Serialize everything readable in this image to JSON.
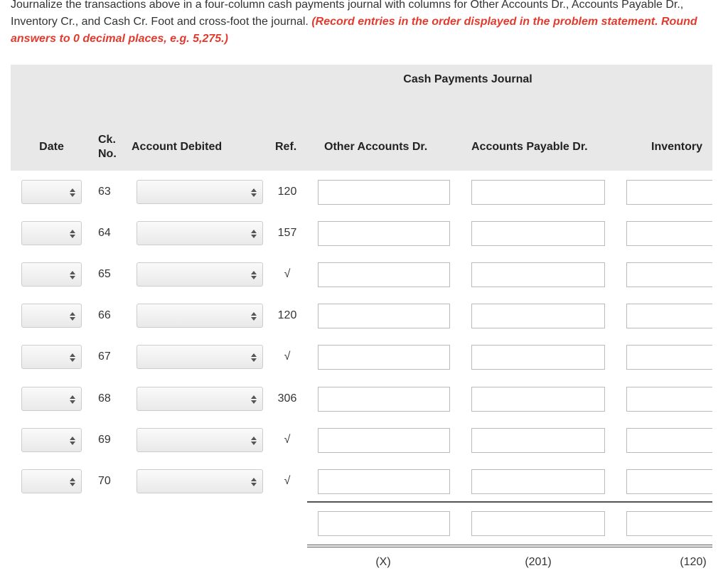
{
  "instructions": {
    "text": "Journalize the transactions above in a four-column cash payments journal with columns for Other Accounts Dr., Accounts Payable Dr., Inventory Cr., and Cash Cr. Foot and cross-foot the journal.",
    "note": "(Record entries in the order displayed in the problem statement. Round answers to 0 decimal places, e.g. 5,275.)"
  },
  "journal": {
    "title": "Cash Payments Journal",
    "columns": [
      "Date",
      "Ck. No.",
      "Account Debited",
      "Ref.",
      "Other Accounts Dr.",
      "Accounts Payable Dr.",
      "Inventory"
    ],
    "rows": [
      {
        "ck_no": 63,
        "ref": "120"
      },
      {
        "ck_no": 64,
        "ref": "157"
      },
      {
        "ck_no": 65,
        "ref": "√"
      },
      {
        "ck_no": 66,
        "ref": "120"
      },
      {
        "ck_no": 67,
        "ref": "√"
      },
      {
        "ck_no": 68,
        "ref": "306"
      },
      {
        "ck_no": 69,
        "ref": "√"
      },
      {
        "ck_no": 70,
        "ref": "√"
      }
    ],
    "footer": [
      "(X)",
      "(201)",
      "(120)"
    ]
  }
}
